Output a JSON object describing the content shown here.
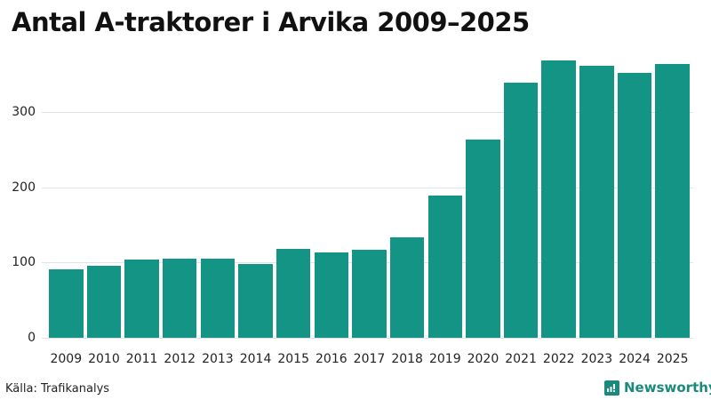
{
  "title": "Antal A-traktorer i Arvika 2009–2025",
  "source": "Källa: Trafikanalys",
  "brand": "Newsworthy",
  "colors": {
    "bar": "#139485",
    "brand": "#1a8a7c",
    "grid": "#e1e1e6"
  },
  "yticks": [
    "0",
    "100",
    "200",
    "300"
  ],
  "chart_data": {
    "type": "bar",
    "title": "Antal A-traktorer i Arvika 2009–2025",
    "xlabel": "",
    "ylabel": "",
    "categories": [
      "2009",
      "2010",
      "2011",
      "2012",
      "2013",
      "2014",
      "2015",
      "2016",
      "2017",
      "2018",
      "2019",
      "2020",
      "2021",
      "2022",
      "2023",
      "2024",
      "2025"
    ],
    "values": [
      90,
      95,
      104,
      105,
      105,
      98,
      118,
      113,
      116,
      133,
      189,
      263,
      339,
      369,
      362,
      352,
      364
    ],
    "ylim": [
      0,
      400
    ],
    "yticks": [
      0,
      100,
      200,
      300
    ],
    "grid": true,
    "legend": null,
    "source": "Källa: Trafikanalys"
  }
}
